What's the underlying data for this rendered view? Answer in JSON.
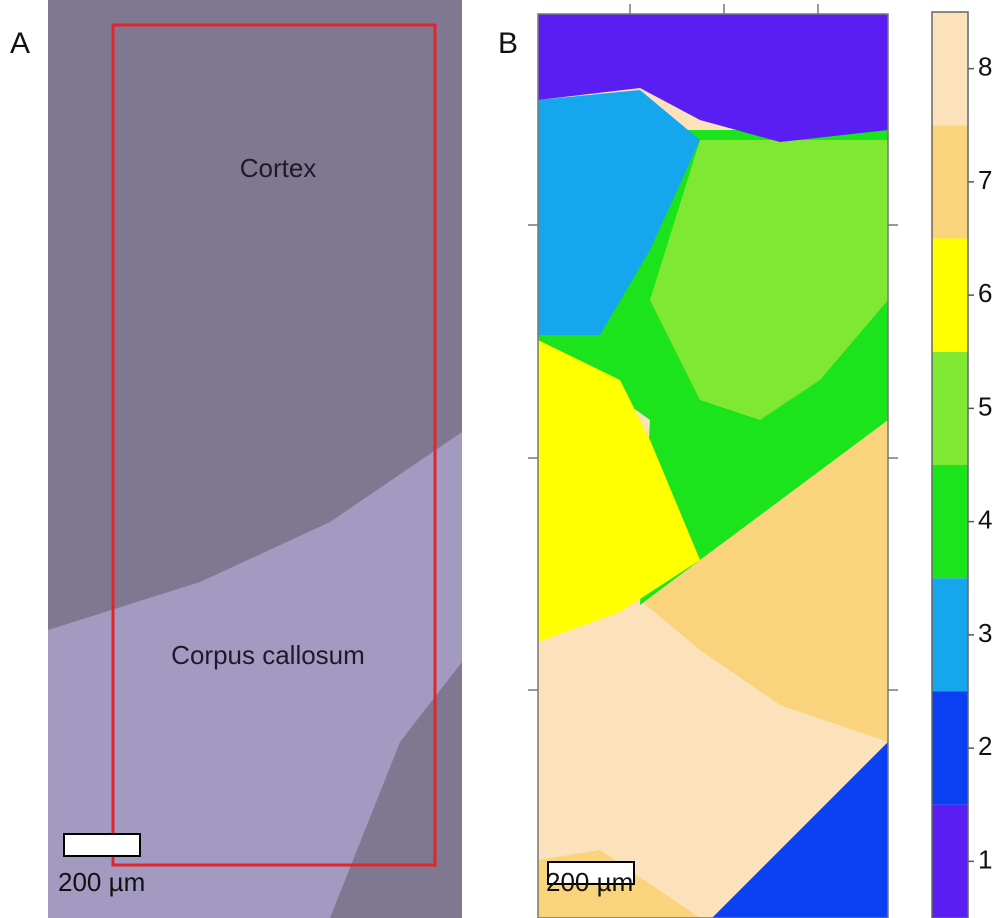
{
  "panel_a": {
    "label": "A",
    "regions": [
      "Cortex",
      "Corpus callosum"
    ],
    "scale_bar": "200 µm"
  },
  "panel_b": {
    "label": "B",
    "scale_bar": "200 µm",
    "colorbar": {
      "ticks": [
        1,
        2,
        3,
        4,
        5,
        6,
        7,
        8
      ],
      "colors": [
        "#5a1df2",
        "#0a3ff2",
        "#15a6ee",
        "#1be41c",
        "#7fe833",
        "#ffff00",
        "#f9d47c",
        "#fce2ba"
      ]
    }
  }
}
